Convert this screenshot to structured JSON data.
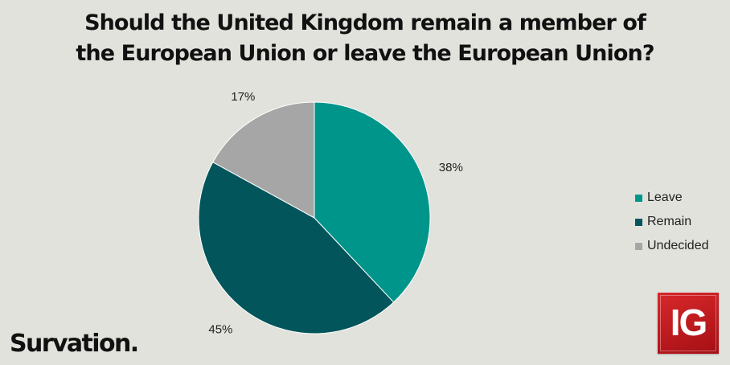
{
  "chart_data": {
    "type": "pie",
    "title_lines": [
      "Should the United Kingdom remain a member of",
      "the European Union or leave the European Union?"
    ],
    "categories": [
      "Leave",
      "Remain",
      "Undecided"
    ],
    "values": [
      38,
      45,
      17
    ],
    "data_labels": [
      "38%",
      "45%",
      "17%"
    ],
    "colors": [
      "#00958a",
      "#02565b",
      "#a6a6a6"
    ],
    "start_angle_deg": 0,
    "direction": "clockwise from 12 o'clock",
    "legend_position": "right"
  },
  "branding": {
    "survation_logo": "Survation.",
    "ig_logo": "IG"
  }
}
